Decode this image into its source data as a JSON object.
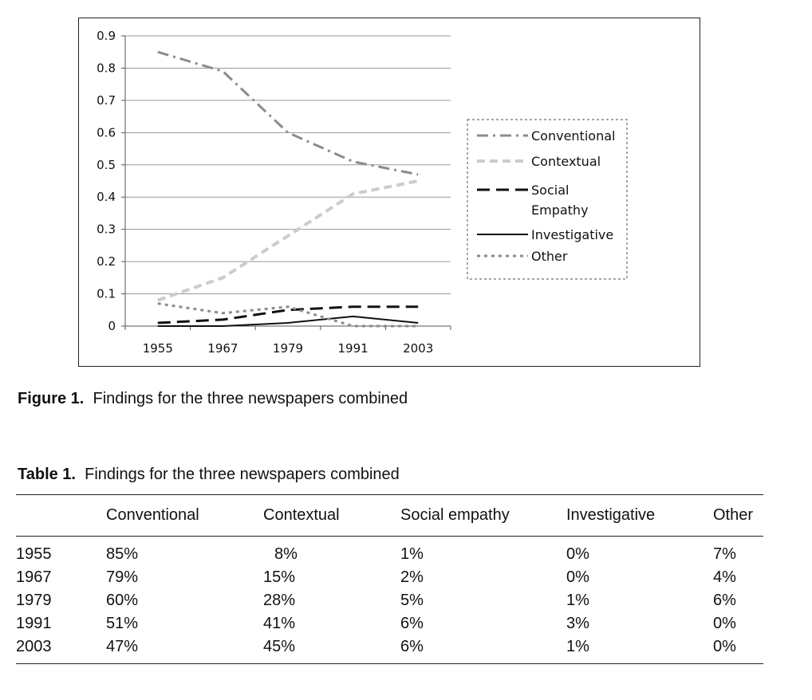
{
  "figure": {
    "label": "Figure 1.",
    "caption": "Findings for the three newspapers combined"
  },
  "chart_data": {
    "type": "line",
    "x": [
      "1955",
      "1967",
      "1979",
      "1991",
      "2003"
    ],
    "y_ticks": [
      "0",
      "0.1",
      "0.2",
      "0.3",
      "0.4",
      "0.5",
      "0.6",
      "0.7",
      "0.8",
      "0.9"
    ],
    "ylim": [
      0,
      0.9
    ],
    "grid": "horizontal",
    "legend_position": "right",
    "series": [
      {
        "name": "Conventional",
        "values": [
          0.85,
          0.79,
          0.6,
          0.51,
          0.47
        ],
        "color": "#8c8c8c",
        "style": "dash-dot"
      },
      {
        "name": "Contextual",
        "values": [
          0.08,
          0.15,
          0.28,
          0.41,
          0.45
        ],
        "color": "#cccccc",
        "style": "dash"
      },
      {
        "name": "Social Empathy",
        "values": [
          0.01,
          0.02,
          0.05,
          0.06,
          0.06
        ],
        "color": "#111111",
        "style": "long-dash"
      },
      {
        "name": "Investigative",
        "values": [
          0.0,
          0.0,
          0.01,
          0.03,
          0.01
        ],
        "color": "#111111",
        "style": "solid"
      },
      {
        "name": "Other",
        "values": [
          0.07,
          0.04,
          0.06,
          0.0,
          0.0
        ],
        "color": "#8c8c8c",
        "style": "dot"
      }
    ]
  },
  "table": {
    "label": "Table 1.",
    "caption": "Findings for the three newspapers combined",
    "headers": [
      "",
      "Conventional",
      "Contextual",
      "Social empathy",
      "Investigative",
      "Other"
    ],
    "rows": [
      [
        "1955",
        "85%",
        "8%",
        "1%",
        "0%",
        "7%"
      ],
      [
        "1967",
        "79%",
        "15%",
        "2%",
        "0%",
        "4%"
      ],
      [
        "1979",
        "60%",
        "28%",
        "5%",
        "1%",
        "6%"
      ],
      [
        "1991",
        "51%",
        "41%",
        "6%",
        "3%",
        "0%"
      ],
      [
        "2003",
        "47%",
        "45%",
        "6%",
        "1%",
        "0%"
      ]
    ]
  }
}
